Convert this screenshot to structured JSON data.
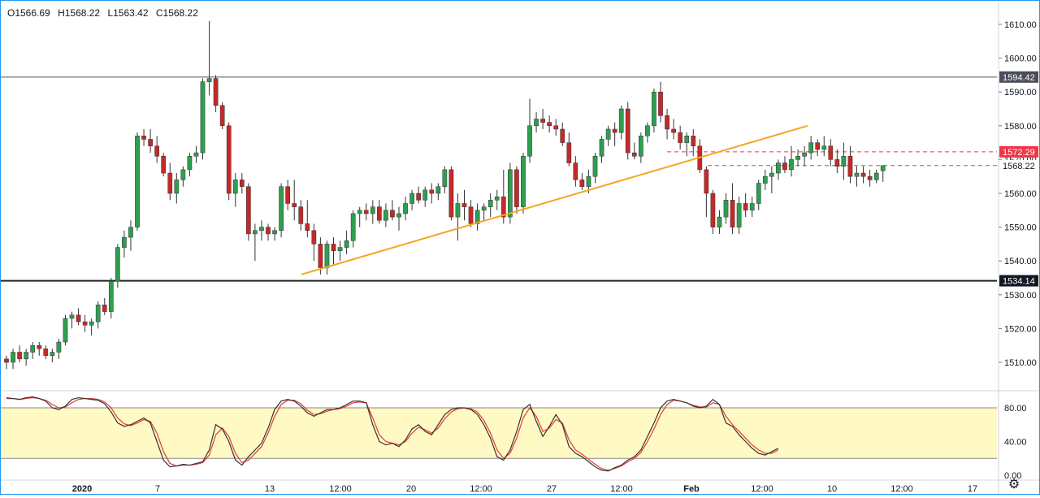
{
  "ohlc": {
    "open": "O1566.69",
    "high": "H1568.22",
    "low": "L1563.42",
    "close": "C1568.22"
  },
  "colors": {
    "up": "#26a69a",
    "up_body": "#2e9e4f",
    "down": "#c62828",
    "trend": "#f5a623",
    "stoch_k": "#333333",
    "stoch_d": "#e53935",
    "band": "#fff9c4",
    "red_label": "#f23645",
    "axis_label_bg": "#363a45"
  },
  "price_axis": {
    "ticks": [
      "1610.00",
      "1600.00",
      "1590.00",
      "1580.00",
      "1570.00",
      "1560.00",
      "1550.00",
      "1540.00",
      "1530.00",
      "1520.00",
      "1510.00"
    ]
  },
  "osc_axis": {
    "ticks": [
      "80.00",
      "40.00",
      "0.00"
    ]
  },
  "level_labels": {
    "resistance": "1594.42",
    "red_level": "1572.29",
    "last_price": "1568.22",
    "support": "1534.14"
  },
  "time_axis": {
    "labels": [
      "2020",
      "7",
      "13",
      "12:00",
      "20",
      "12:00",
      "27",
      "12:00",
      "Feb",
      "12:00",
      "10",
      "12:00",
      "17"
    ]
  },
  "settings_icon": "gear-icon",
  "chart_data": {
    "type": "candlestick",
    "title": "",
    "ylim": [
      1505,
      1614
    ],
    "grid": false,
    "levels": {
      "resistance": 1594.42,
      "support": 1534.14,
      "red_dashed": 1572.29,
      "last_dashed": 1568.22
    },
    "trendline": {
      "from": 1536,
      "to": 1580
    },
    "candles": [
      [
        1511,
        1512,
        1508,
        1510
      ],
      [
        1510,
        1514,
        1508,
        1513
      ],
      [
        1513,
        1515,
        1510,
        1511
      ],
      [
        1511,
        1514,
        1509,
        1513
      ],
      [
        1513,
        1516,
        1511,
        1515
      ],
      [
        1515,
        1516,
        1512,
        1514
      ],
      [
        1514,
        1515,
        1511,
        1512
      ],
      [
        1512,
        1514,
        1510,
        1513
      ],
      [
        1513,
        1517,
        1511,
        1516
      ],
      [
        1516,
        1524,
        1515,
        1523
      ],
      [
        1523,
        1525,
        1520,
        1524
      ],
      [
        1524,
        1526,
        1521,
        1522
      ],
      [
        1522,
        1524,
        1519,
        1521
      ],
      [
        1521,
        1523,
        1518,
        1522
      ],
      [
        1522,
        1528,
        1520,
        1527
      ],
      [
        1527,
        1529,
        1524,
        1525
      ],
      [
        1525,
        1535,
        1523,
        1534
      ],
      [
        1534,
        1545,
        1532,
        1544
      ],
      [
        1544,
        1549,
        1541,
        1547
      ],
      [
        1547,
        1552,
        1543,
        1550
      ],
      [
        1550,
        1578,
        1549,
        1577
      ],
      [
        1577,
        1579,
        1574,
        1576
      ],
      [
        1576,
        1579,
        1572,
        1574
      ],
      [
        1574,
        1577,
        1569,
        1571
      ],
      [
        1571,
        1572,
        1565,
        1566
      ],
      [
        1566,
        1569,
        1558,
        1560
      ],
      [
        1560,
        1566,
        1557,
        1564
      ],
      [
        1564,
        1568,
        1562,
        1567
      ],
      [
        1567,
        1572,
        1565,
        1571
      ],
      [
        1571,
        1574,
        1569,
        1572
      ],
      [
        1572,
        1594,
        1570,
        1593
      ],
      [
        1593,
        1611,
        1589,
        1594
      ],
      [
        1594,
        1595,
        1584,
        1586
      ],
      [
        1586,
        1587,
        1579,
        1580
      ],
      [
        1580,
        1581,
        1558,
        1560
      ],
      [
        1560,
        1566,
        1556,
        1564
      ],
      [
        1564,
        1566,
        1560,
        1562
      ],
      [
        1562,
        1563,
        1546,
        1548
      ],
      [
        1548,
        1551,
        1540,
        1549
      ],
      [
        1549,
        1552,
        1546,
        1550
      ],
      [
        1550,
        1551,
        1546,
        1548
      ],
      [
        1548,
        1550,
        1546,
        1549
      ],
      [
        1549,
        1563,
        1547,
        1562
      ],
      [
        1562,
        1564,
        1555,
        1557
      ],
      [
        1557,
        1564,
        1552,
        1556
      ],
      [
        1556,
        1558,
        1549,
        1551
      ],
      [
        1551,
        1558,
        1547,
        1549
      ],
      [
        1549,
        1551,
        1540,
        1545
      ],
      [
        1545,
        1547,
        1536,
        1538
      ],
      [
        1538,
        1546,
        1536,
        1545
      ],
      [
        1545,
        1547,
        1539,
        1543
      ],
      [
        1543,
        1546,
        1540,
        1544
      ],
      [
        1544,
        1549,
        1542,
        1546
      ],
      [
        1546,
        1555,
        1544,
        1554
      ],
      [
        1554,
        1556,
        1550,
        1555
      ],
      [
        1555,
        1557,
        1552,
        1554
      ],
      [
        1554,
        1558,
        1551,
        1556
      ],
      [
        1556,
        1558,
        1551,
        1552
      ],
      [
        1552,
        1557,
        1550,
        1555
      ],
      [
        1555,
        1558,
        1552,
        1553
      ],
      [
        1553,
        1556,
        1549,
        1554
      ],
      [
        1554,
        1559,
        1552,
        1557
      ],
      [
        1557,
        1561,
        1555,
        1560
      ],
      [
        1560,
        1562,
        1557,
        1558
      ],
      [
        1558,
        1562,
        1556,
        1561
      ],
      [
        1561,
        1563,
        1557,
        1560
      ],
      [
        1560,
        1563,
        1558,
        1562
      ],
      [
        1562,
        1568,
        1560,
        1567
      ],
      [
        1567,
        1568,
        1552,
        1553
      ],
      [
        1553,
        1560,
        1546,
        1557
      ],
      [
        1557,
        1561,
        1552,
        1556
      ],
      [
        1556,
        1558,
        1550,
        1551
      ],
      [
        1551,
        1557,
        1549,
        1555
      ],
      [
        1555,
        1557,
        1552,
        1556
      ],
      [
        1556,
        1560,
        1553,
        1558
      ],
      [
        1558,
        1561,
        1555,
        1559
      ],
      [
        1559,
        1567,
        1551,
        1553
      ],
      [
        1553,
        1569,
        1551,
        1567
      ],
      [
        1567,
        1568,
        1554,
        1556
      ],
      [
        1556,
        1572,
        1554,
        1571
      ],
      [
        1571,
        1588,
        1569,
        1580
      ],
      [
        1580,
        1584,
        1578,
        1582
      ],
      [
        1582,
        1585,
        1579,
        1581
      ],
      [
        1581,
        1583,
        1578,
        1580
      ],
      [
        1580,
        1582,
        1577,
        1579
      ],
      [
        1579,
        1581,
        1574,
        1575
      ],
      [
        1575,
        1578,
        1568,
        1569
      ],
      [
        1569,
        1571,
        1562,
        1564
      ],
      [
        1564,
        1566,
        1561,
        1562
      ],
      [
        1562,
        1567,
        1560,
        1565
      ],
      [
        1565,
        1572,
        1563,
        1571
      ],
      [
        1571,
        1577,
        1569,
        1576
      ],
      [
        1576,
        1580,
        1574,
        1579
      ],
      [
        1579,
        1581,
        1574,
        1578
      ],
      [
        1578,
        1586,
        1576,
        1585
      ],
      [
        1585,
        1587,
        1570,
        1572
      ],
      [
        1572,
        1575,
        1570,
        1571
      ],
      [
        1571,
        1578,
        1569,
        1577
      ],
      [
        1577,
        1581,
        1575,
        1580
      ],
      [
        1580,
        1591,
        1578,
        1590
      ],
      [
        1590,
        1593,
        1581,
        1583
      ],
      [
        1583,
        1585,
        1576,
        1579
      ],
      [
        1579,
        1582,
        1576,
        1578
      ],
      [
        1578,
        1580,
        1573,
        1575
      ],
      [
        1575,
        1578,
        1571,
        1577
      ],
      [
        1577,
        1579,
        1571,
        1574
      ],
      [
        1574,
        1576,
        1566,
        1567
      ],
      [
        1567,
        1568,
        1553,
        1560
      ],
      [
        1560,
        1561,
        1548,
        1550
      ],
      [
        1550,
        1555,
        1548,
        1553
      ],
      [
        1553,
        1560,
        1551,
        1558
      ],
      [
        1558,
        1563,
        1548,
        1550
      ],
      [
        1550,
        1559,
        1548,
        1557
      ],
      [
        1557,
        1560,
        1553,
        1555
      ],
      [
        1555,
        1559,
        1553,
        1557
      ],
      [
        1557,
        1564,
        1555,
        1563
      ],
      [
        1563,
        1567,
        1561,
        1565
      ],
      [
        1565,
        1568,
        1560,
        1566
      ],
      [
        1566,
        1570,
        1564,
        1569
      ],
      [
        1569,
        1571,
        1566,
        1567
      ],
      [
        1567,
        1574,
        1565,
        1570
      ],
      [
        1570,
        1573,
        1568,
        1571
      ],
      [
        1571,
        1574,
        1568,
        1572
      ],
      [
        1572,
        1577,
        1570,
        1575
      ],
      [
        1575,
        1576,
        1571,
        1573
      ],
      [
        1573,
        1577,
        1571,
        1574
      ],
      [
        1574,
        1576,
        1568,
        1570
      ],
      [
        1570,
        1573,
        1566,
        1568
      ],
      [
        1568,
        1575,
        1564,
        1571
      ],
      [
        1571,
        1574,
        1563,
        1565
      ],
      [
        1565,
        1568,
        1562,
        1566
      ],
      [
        1566,
        1568,
        1563,
        1565
      ],
      [
        1565,
        1567,
        1562,
        1564
      ],
      [
        1564,
        1567,
        1563,
        1566
      ],
      [
        1566.69,
        1568.22,
        1563.42,
        1568.22
      ]
    ],
    "oscillator": {
      "ylim": [
        0,
        100
      ],
      "band": [
        20,
        80
      ],
      "k": [
        92,
        91,
        90,
        92,
        93,
        91,
        88,
        80,
        78,
        82,
        90,
        92,
        91,
        90,
        89,
        85,
        75,
        62,
        58,
        60,
        64,
        68,
        62,
        40,
        18,
        10,
        11,
        13,
        12,
        14,
        16,
        30,
        60,
        55,
        40,
        18,
        12,
        22,
        30,
        38,
        56,
        78,
        88,
        90,
        88,
        82,
        74,
        70,
        74,
        78,
        78,
        80,
        84,
        88,
        88,
        86,
        60,
        40,
        36,
        38,
        34,
        42,
        55,
        60,
        52,
        48,
        60,
        72,
        78,
        80,
        80,
        78,
        72,
        60,
        44,
        22,
        18,
        30,
        52,
        78,
        84,
        64,
        46,
        58,
        72,
        60,
        34,
        26,
        22,
        16,
        10,
        6,
        5,
        9,
        12,
        18,
        22,
        30,
        46,
        62,
        80,
        88,
        90,
        88,
        86,
        82,
        80,
        82,
        90,
        84,
        62,
        58,
        48,
        40,
        32,
        26,
        24,
        28,
        32
      ],
      "d": [
        91,
        91,
        90,
        91,
        92,
        91,
        89,
        84,
        80,
        81,
        86,
        90,
        91,
        91,
        90,
        87,
        80,
        68,
        61,
        59,
        62,
        66,
        64,
        50,
        28,
        14,
        11,
        12,
        12,
        13,
        15,
        24,
        48,
        56,
        46,
        26,
        15,
        18,
        26,
        34,
        50,
        70,
        84,
        89,
        89,
        85,
        77,
        72,
        73,
        76,
        78,
        79,
        82,
        86,
        87,
        86,
        68,
        48,
        40,
        38,
        36,
        40,
        50,
        57,
        54,
        50,
        56,
        67,
        75,
        79,
        80,
        79,
        75,
        65,
        50,
        30,
        20,
        26,
        44,
        68,
        80,
        70,
        52,
        56,
        66,
        62,
        42,
        30,
        25,
        19,
        13,
        8,
        6,
        8,
        11,
        16,
        20,
        27,
        40,
        55,
        72,
        84,
        89,
        88,
        86,
        83,
        81,
        81,
        86,
        84,
        70,
        60,
        52,
        44,
        36,
        30,
        26,
        26,
        30
      ]
    }
  }
}
